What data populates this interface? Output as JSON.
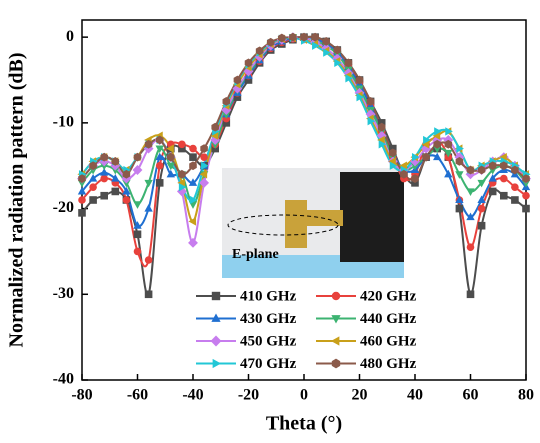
{
  "chart_data": {
    "type": "line",
    "xlabel": "Theta (°)",
    "ylabel": "Normalized radiation pattern (dB)",
    "annotation": "E-plane",
    "legend": "bottom-center",
    "xlim": [
      -80,
      80
    ],
    "ylim": [
      -40,
      2
    ],
    "xticks": [
      -80,
      -60,
      -40,
      -20,
      0,
      20,
      40,
      60,
      80
    ],
    "yticks": [
      -40,
      -30,
      -20,
      -10,
      0
    ],
    "x": [
      -80,
      -76,
      -72,
      -68,
      -64,
      -60,
      -56,
      -52,
      -48,
      -44,
      -40,
      -36,
      -32,
      -28,
      -24,
      -20,
      -16,
      -12,
      -8,
      -4,
      0,
      4,
      8,
      12,
      16,
      20,
      24,
      28,
      32,
      36,
      40,
      44,
      48,
      52,
      56,
      60,
      64,
      68,
      72,
      76,
      80
    ],
    "series": [
      {
        "name": "410 GHz",
        "color": "#4d4d4d",
        "marker": "square",
        "values": [
          -20.5,
          -19,
          -18.5,
          -18,
          -19,
          -23,
          -30,
          -17,
          -13,
          -13,
          -14,
          -15,
          -13,
          -10,
          -7,
          -5,
          -3,
          -1.5,
          -0.8,
          -0.3,
          0,
          0,
          -0.5,
          -1.5,
          -3,
          -5,
          -7.5,
          -10,
          -13,
          -16,
          -17,
          -14,
          -13,
          -14,
          -20,
          -30,
          -22,
          -18,
          -18.5,
          -19,
          -20
        ]
      },
      {
        "name": "420 GHz",
        "color": "#e8413c",
        "marker": "circle",
        "values": [
          -19,
          -17.5,
          -16.5,
          -17,
          -19,
          -25,
          -26,
          -15,
          -12.5,
          -12.5,
          -13,
          -14,
          -12.5,
          -9.5,
          -6.5,
          -4.5,
          -2.8,
          -1.3,
          -0.6,
          -0.2,
          0,
          -0.1,
          -0.6,
          -1.6,
          -3.2,
          -5.2,
          -8,
          -11,
          -14,
          -16.5,
          -16,
          -12.5,
          -12,
          -14,
          -19,
          -24.5,
          -20,
          -17,
          -16.5,
          -17.5,
          -18.5
        ]
      },
      {
        "name": "430 GHz",
        "color": "#1f6fd1",
        "marker": "triangle-up",
        "values": [
          -18,
          -16.5,
          -15.8,
          -16.5,
          -18,
          -22,
          -20,
          -14,
          -16,
          -16,
          -17,
          -15,
          -12,
          -9,
          -6.5,
          -4.5,
          -2.7,
          -1.2,
          -0.5,
          -0.1,
          0,
          -0.2,
          -0.8,
          -1.8,
          -3.5,
          -5.5,
          -8,
          -10.5,
          -13.5,
          -15.5,
          -15.5,
          -14,
          -14,
          -16,
          -19,
          -21,
          -19,
          -16.5,
          -15.5,
          -16,
          -17.5
        ]
      },
      {
        "name": "440 GHz",
        "color": "#3cb371",
        "marker": "triangle-down",
        "values": [
          -17,
          -15.5,
          -15,
          -15.5,
          -17,
          -19.5,
          -17,
          -13,
          -15,
          -16,
          -19.5,
          -16,
          -12.5,
          -9,
          -6.2,
          -4.2,
          -2.5,
          -1,
          -0.3,
          0,
          -0.2,
          -0.5,
          -1,
          -2,
          -3.8,
          -6,
          -8.5,
          -11,
          -14,
          -15.5,
          -15,
          -14,
          -13,
          -13.5,
          -16,
          -18,
          -17,
          -15.5,
          -15,
          -15.5,
          -17
        ]
      },
      {
        "name": "450 GHz",
        "color": "#c77dee",
        "marker": "diamond",
        "values": [
          -16.5,
          -15,
          -14.5,
          -15,
          -16.5,
          -15.5,
          -13,
          -12,
          -14,
          -18,
          -24,
          -17,
          -12,
          -8.5,
          -6,
          -4,
          -2.3,
          -1,
          -0.3,
          0,
          -0.2,
          -0.6,
          -1.3,
          -2.5,
          -4.2,
          -6.5,
          -9,
          -11.5,
          -14.5,
          -15.5,
          -14.5,
          -13,
          -12,
          -12,
          -14,
          -16,
          -15.5,
          -14.5,
          -14,
          -15,
          -16.5
        ]
      },
      {
        "name": "460 GHz",
        "color": "#c9a01a",
        "marker": "triangle-left",
        "values": [
          -16,
          -14.5,
          -14,
          -14.5,
          -15.5,
          -14,
          -12,
          -11.5,
          -13,
          -17,
          -21.5,
          -16,
          -11.5,
          -8,
          -5.5,
          -3.5,
          -2,
          -0.8,
          -0.2,
          -0.1,
          -0.3,
          -0.8,
          -1.6,
          -2.8,
          -4.5,
          -6.8,
          -9.5,
          -12,
          -14.5,
          -15,
          -14,
          -12.5,
          -11.5,
          -11,
          -13,
          -15.5,
          -15,
          -14.5,
          -14,
          -15,
          -16
        ]
      },
      {
        "name": "470 GHz",
        "color": "#22c7d6",
        "marker": "triangle-right",
        "values": [
          -16,
          -14.5,
          -14,
          -14.5,
          -15.5,
          -14,
          -12.5,
          -12,
          -14,
          -17.5,
          -19,
          -15,
          -11,
          -7.8,
          -5.2,
          -3.2,
          -1.8,
          -0.7,
          -0.2,
          -0.1,
          -0.4,
          -1,
          -1.8,
          -3,
          -4.8,
          -7,
          -9.8,
          -12.5,
          -15,
          -15.5,
          -14,
          -12,
          -11,
          -11,
          -13,
          -15.5,
          -15,
          -14.5,
          -14.5,
          -15,
          -16
        ]
      },
      {
        "name": "480 GHz",
        "color": "#8b5a4a",
        "marker": "hexagon",
        "values": [
          -16.5,
          -15,
          -14,
          -14.5,
          -16,
          -14,
          -12.5,
          -12,
          -14,
          -16,
          -15,
          -13,
          -10.5,
          -7.5,
          -5,
          -3,
          -1.6,
          -0.6,
          -0.1,
          0,
          0,
          0,
          -0.5,
          -1.5,
          -3,
          -5,
          -7.5,
          -10.5,
          -13.5,
          -16,
          -16.5,
          -14,
          -12.5,
          -12.5,
          -14.5,
          -15.5,
          -15.5,
          -15,
          -15,
          -15.5,
          -16.5
        ]
      }
    ]
  }
}
